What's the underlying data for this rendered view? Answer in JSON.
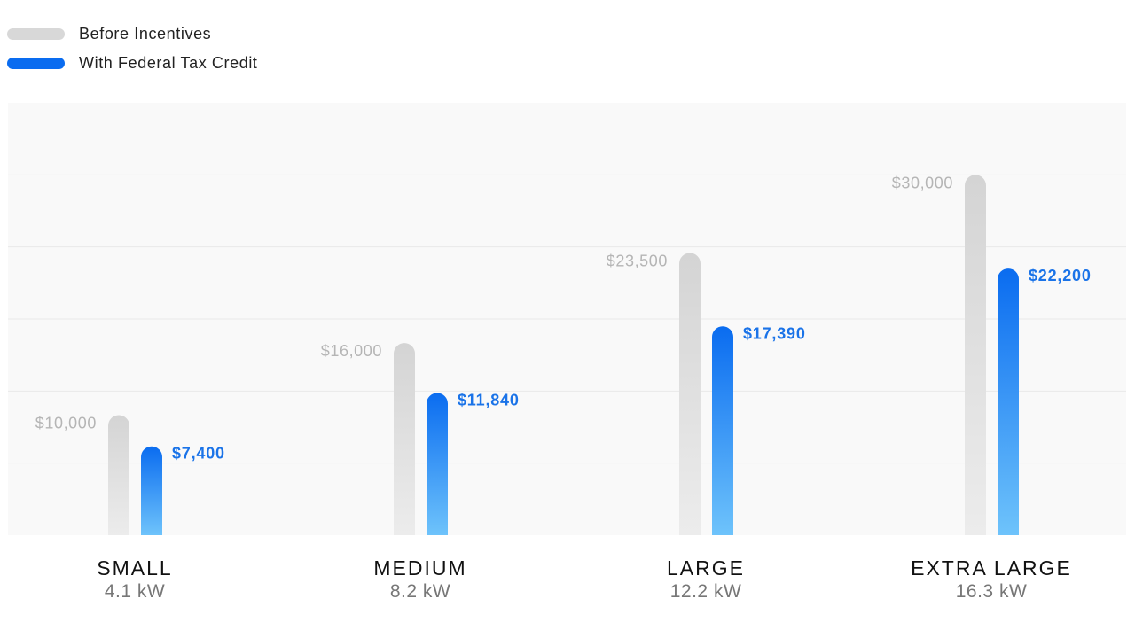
{
  "legend": {
    "before": {
      "label": "Before Incentives",
      "color": "#d8d8d8"
    },
    "after": {
      "label": "With Federal Tax Credit",
      "color": "#0a6cf0"
    }
  },
  "chart_data": {
    "type": "bar",
    "title": "",
    "xlabel": "",
    "ylabel": "",
    "ylim": [
      0,
      36000
    ],
    "grid": true,
    "legend_position": "top-left",
    "categories": [
      {
        "name": "SMALL",
        "sub": "4.1 kW"
      },
      {
        "name": "MEDIUM",
        "sub": "8.2 kW"
      },
      {
        "name": "LARGE",
        "sub": "12.2 kW"
      },
      {
        "name": "EXTRA LARGE",
        "sub": "16.3 kW"
      }
    ],
    "series": [
      {
        "name": "Before Incentives",
        "values": [
          10000,
          16000,
          23500,
          30000
        ],
        "labels": [
          "$10,000",
          "$16,000",
          "$23,500",
          "$30,000"
        ]
      },
      {
        "name": "With Federal Tax Credit",
        "values": [
          7400,
          11840,
          17390,
          22200
        ],
        "labels": [
          "$7,400",
          "$11,840",
          "$17,390",
          "$22,200"
        ]
      }
    ]
  }
}
